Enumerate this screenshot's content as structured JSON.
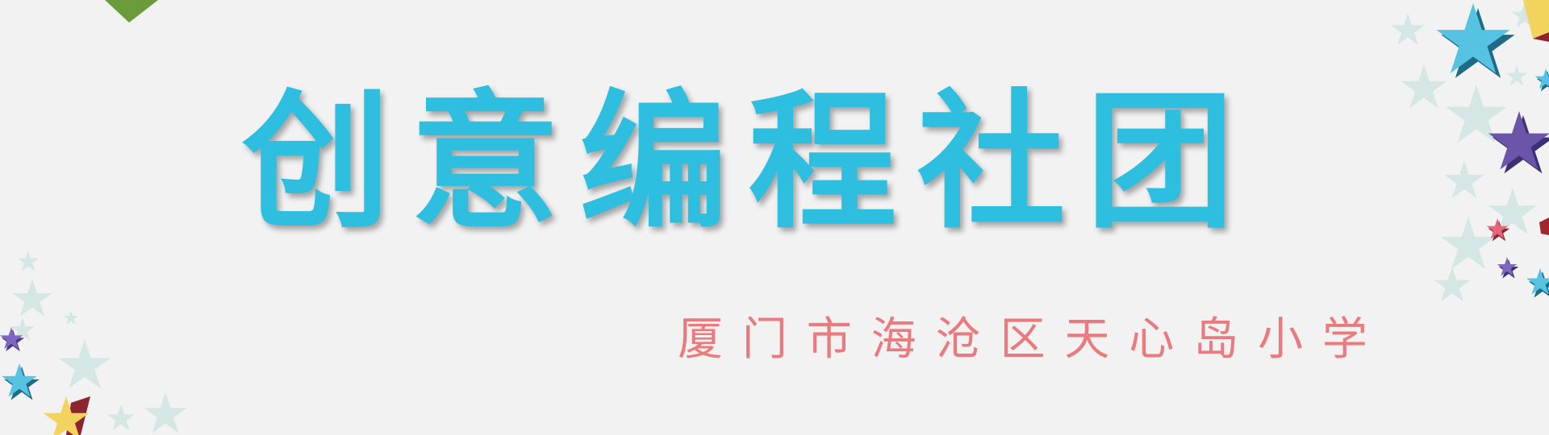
{
  "banner": {
    "title": "创意编程社团",
    "subtitle": "厦门市海沧区天心岛小学"
  },
  "colors": {
    "background": "#f2f2f2",
    "title": "#2ebedf",
    "subtitle": "#ea7a7e",
    "star_blue": "#56c3e2",
    "star_purple": "#6b55a8",
    "star_yellow": "#f2d35c",
    "star_red": "#c23a4b",
    "star_faint": "#cfe6e2"
  },
  "icons": [
    "star-icon",
    "star-icon-3d"
  ]
}
